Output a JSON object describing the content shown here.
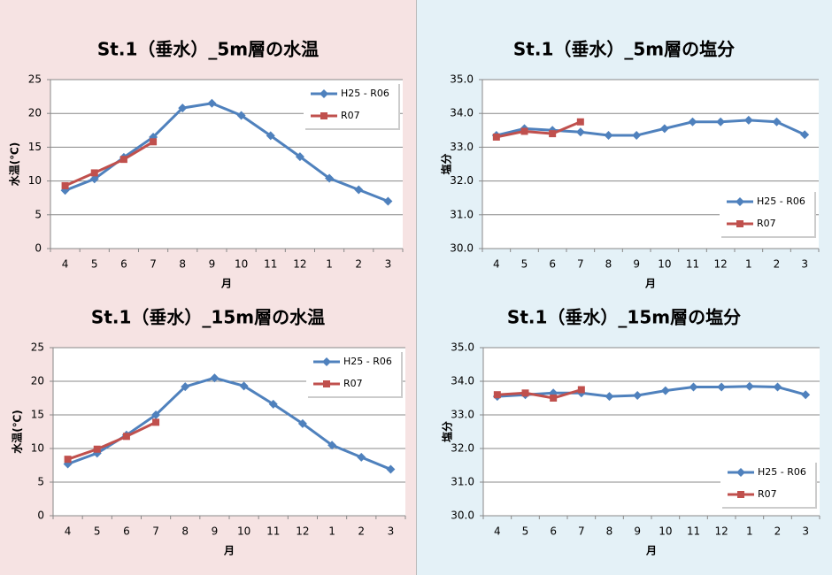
{
  "chart_data": [
    {
      "type": "line",
      "title": "St.1（垂水）_5m層の水温",
      "ylabel": "水温(℃)",
      "xlabel": "月",
      "categories": [
        "4",
        "5",
        "6",
        "7",
        "8",
        "9",
        "10",
        "11",
        "12",
        "1",
        "2",
        "3"
      ],
      "series": [
        {
          "name": "H25 - R06",
          "color": "#4f81bd",
          "marker": "diamond",
          "values": [
            8.6,
            10.3,
            13.5,
            16.5,
            20.8,
            21.5,
            19.7,
            16.7,
            13.6,
            10.4,
            8.7,
            7.0
          ]
        },
        {
          "name": "R07",
          "color": "#c0504d",
          "marker": "square",
          "values": [
            9.3,
            11.2,
            13.2,
            15.8,
            null,
            null,
            null,
            null,
            null,
            null,
            null,
            null
          ]
        }
      ],
      "ylim": [
        0,
        25
      ],
      "yticks": [
        0,
        5,
        10,
        15,
        20,
        25
      ],
      "grid": true,
      "legend": "upper right"
    },
    {
      "type": "line",
      "title": "St.1（垂水）_5m層の塩分",
      "ylabel": "塩分",
      "xlabel": "月",
      "categories": [
        "4",
        "5",
        "6",
        "7",
        "8",
        "9",
        "10",
        "11",
        "12",
        "1",
        "2",
        "3"
      ],
      "series": [
        {
          "name": "H25 - R06",
          "color": "#4f81bd",
          "marker": "diamond",
          "values": [
            33.35,
            33.55,
            33.5,
            33.45,
            33.35,
            33.35,
            33.55,
            33.75,
            33.75,
            33.8,
            33.75,
            33.37
          ]
        },
        {
          "name": "R07",
          "color": "#c0504d",
          "marker": "square",
          "values": [
            33.3,
            33.47,
            33.4,
            33.75,
            null,
            null,
            null,
            null,
            null,
            null,
            null,
            null
          ]
        }
      ],
      "ylim": [
        30,
        35
      ],
      "yticks": [
        {
          "value": 30,
          "label": "30.0"
        },
        {
          "value": 31,
          "label": "31.0"
        },
        {
          "value": 32,
          "label": "32.0"
        },
        {
          "value": 33,
          "label": "33.0"
        },
        {
          "value": 34,
          "label": "34.0"
        },
        {
          "value": 35,
          "label": "35.0"
        }
      ],
      "grid": true,
      "legend": "lower right"
    },
    {
      "type": "line",
      "title": "St.1（垂水）_15m層の水温",
      "ylabel": "水温(℃)",
      "xlabel": "月",
      "categories": [
        "4",
        "5",
        "6",
        "7",
        "8",
        "9",
        "10",
        "11",
        "12",
        "1",
        "2",
        "3"
      ],
      "series": [
        {
          "name": "H25 - R06",
          "color": "#4f81bd",
          "marker": "diamond",
          "values": [
            7.7,
            9.3,
            12.0,
            15.0,
            19.2,
            20.5,
            19.3,
            16.6,
            13.7,
            10.5,
            8.7,
            6.9
          ]
        },
        {
          "name": "R07",
          "color": "#c0504d",
          "marker": "square",
          "values": [
            8.4,
            9.9,
            11.8,
            13.9,
            null,
            null,
            null,
            null,
            null,
            null,
            null,
            null
          ]
        }
      ],
      "ylim": [
        0,
        25
      ],
      "yticks": [
        0,
        5,
        10,
        15,
        20,
        25
      ],
      "grid": true,
      "legend": "upper right"
    },
    {
      "type": "line",
      "title": "St.1（垂水）_15m層の塩分",
      "ylabel": "塩分",
      "xlabel": "月",
      "categories": [
        "4",
        "5",
        "6",
        "7",
        "8",
        "9",
        "10",
        "11",
        "12",
        "1",
        "2",
        "3"
      ],
      "series": [
        {
          "name": "H25 - R06",
          "color": "#4f81bd",
          "marker": "diamond",
          "values": [
            33.55,
            33.6,
            33.65,
            33.65,
            33.55,
            33.58,
            33.72,
            33.83,
            33.83,
            33.85,
            33.83,
            33.6
          ]
        },
        {
          "name": "R07",
          "color": "#c0504d",
          "marker": "square",
          "values": [
            33.6,
            33.65,
            33.5,
            33.75,
            null,
            null,
            null,
            null,
            null,
            null,
            null,
            null
          ]
        }
      ],
      "ylim": [
        30,
        35
      ],
      "yticks": [
        {
          "value": 30,
          "label": "30.0"
        },
        {
          "value": 31,
          "label": "31.0"
        },
        {
          "value": 32,
          "label": "32.0"
        },
        {
          "value": 33,
          "label": "33.0"
        },
        {
          "value": 34,
          "label": "34.0"
        },
        {
          "value": 35,
          "label": "35.0"
        }
      ],
      "grid": true,
      "legend": "lower right"
    }
  ]
}
